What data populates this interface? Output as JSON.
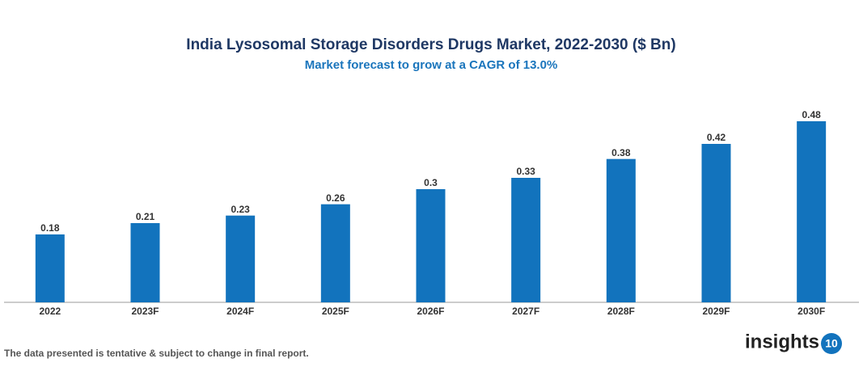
{
  "chart_data": {
    "type": "bar",
    "title": "India Lysosomal Storage Disorders Drugs Market, 2022-2030 ($ Bn)",
    "subtitle": "Market forecast to grow at a CAGR of 13.0%",
    "categories": [
      "2022",
      "2023F",
      "2024F",
      "2025F",
      "2026F",
      "2027F",
      "2028F",
      "2029F",
      "2030F"
    ],
    "values": [
      0.18,
      0.21,
      0.23,
      0.26,
      0.3,
      0.33,
      0.38,
      0.42,
      0.48
    ],
    "color": "#1273bd"
  },
  "footnote": "The data presented is tentative & subject to change in final report.",
  "logo": {
    "text": "insights",
    "badge": "10"
  }
}
